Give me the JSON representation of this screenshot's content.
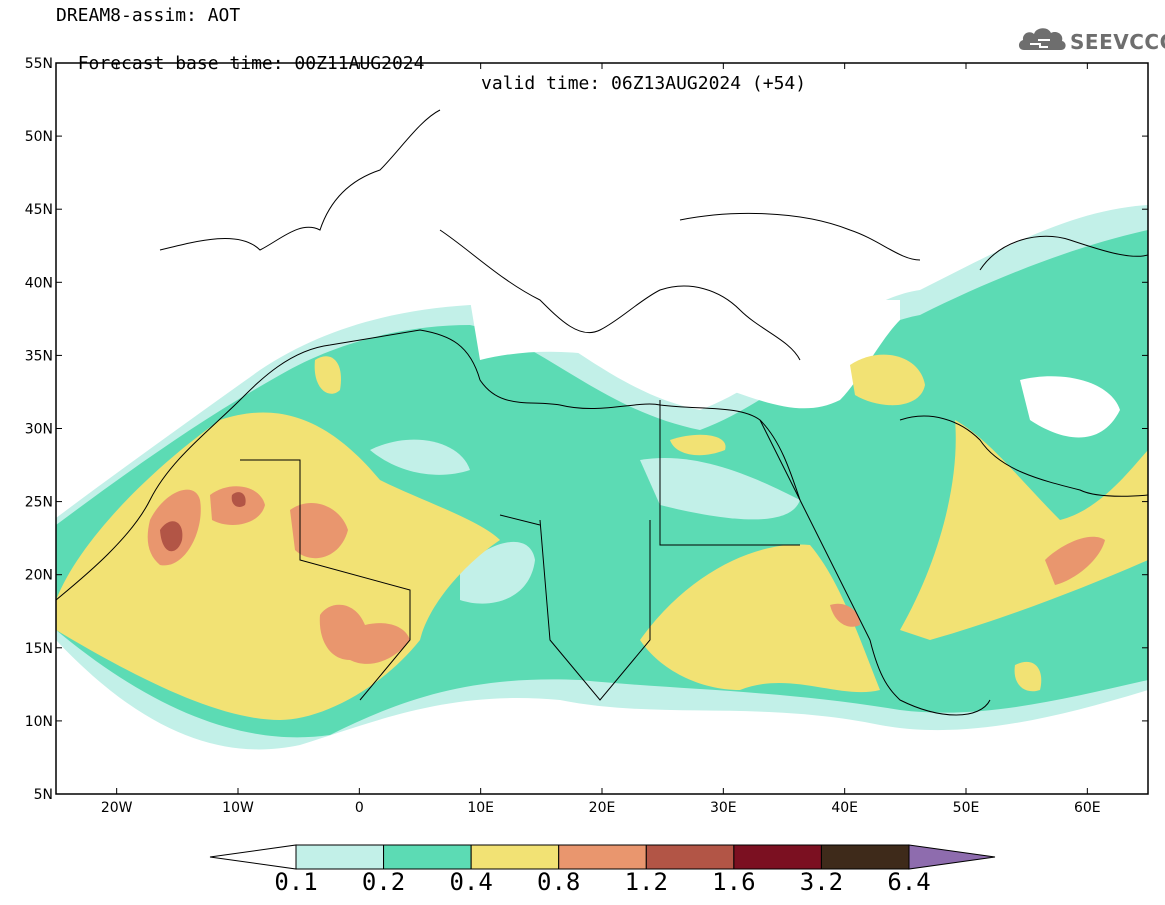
{
  "header": {
    "line1": "DREAM8-assim: AOT",
    "base_time": "Forecast base time: 00Z11AUG2024",
    "valid_time": "valid time: 06Z13AUG2024 (+54)"
  },
  "logo": {
    "text": "SEEVCCC",
    "icon": "cloud-icon"
  },
  "map": {
    "projection": "lat-lon",
    "lon_range": [
      -25,
      65
    ],
    "lat_range": [
      5,
      55
    ],
    "lat_labels": [
      "55N",
      "50N",
      "45N",
      "40N",
      "35N",
      "30N",
      "25N",
      "20N",
      "15N",
      "10N",
      "5N"
    ],
    "lon_labels": [
      "20W",
      "10W",
      "0",
      "10E",
      "20E",
      "30E",
      "40E",
      "50E",
      "60E"
    ],
    "field": "AOT"
  },
  "colorbar": {
    "boundaries": [
      "0.1",
      "0.2",
      "0.4",
      "0.8",
      "1.2",
      "1.6",
      "3.2",
      "6.4"
    ],
    "colors": [
      "#ffffff",
      "#c2f0e8",
      "#5cdbb4",
      "#f2e274",
      "#e9966e",
      "#b25546",
      "#7b1021",
      "#3e2a1a",
      "#8e6cae"
    ]
  }
}
